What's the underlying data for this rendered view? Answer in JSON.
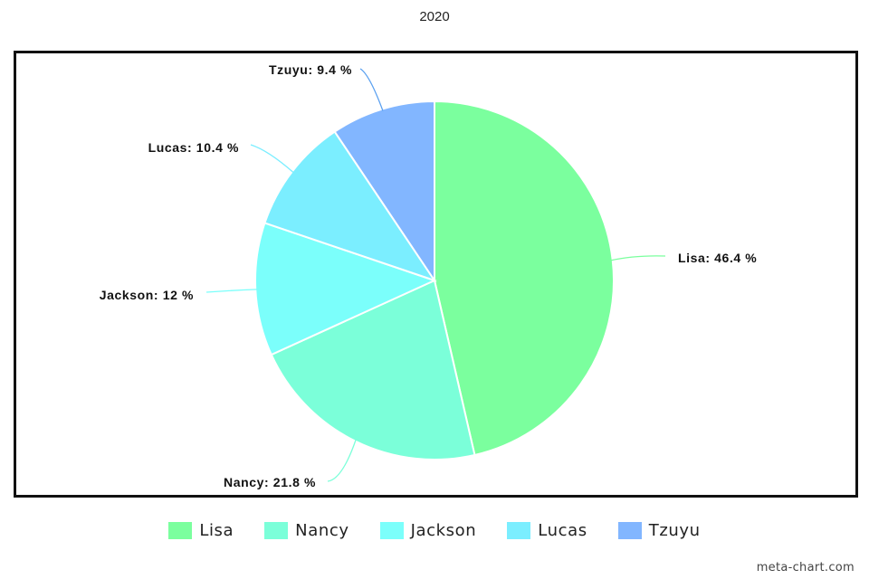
{
  "chart_data": {
    "type": "pie",
    "title": "2020",
    "categories": [
      "Lisa",
      "Nancy",
      "Jackson",
      "Lucas",
      "Tzuyu"
    ],
    "values": [
      46.4,
      21.8,
      12,
      10.4,
      9.4
    ],
    "labels": [
      "Lisa: 46.4 %",
      "Nancy: 21.8 %",
      "Jackson: 12 %",
      "Lucas: 10.4 %",
      "Tzuyu: 9.4 %"
    ],
    "colors": [
      "#7bff9e",
      "#7bffd9",
      "#7bfffb",
      "#7beeff",
      "#82b6ff"
    ],
    "legend_position": "bottom"
  },
  "watermark": "meta-chart.com"
}
